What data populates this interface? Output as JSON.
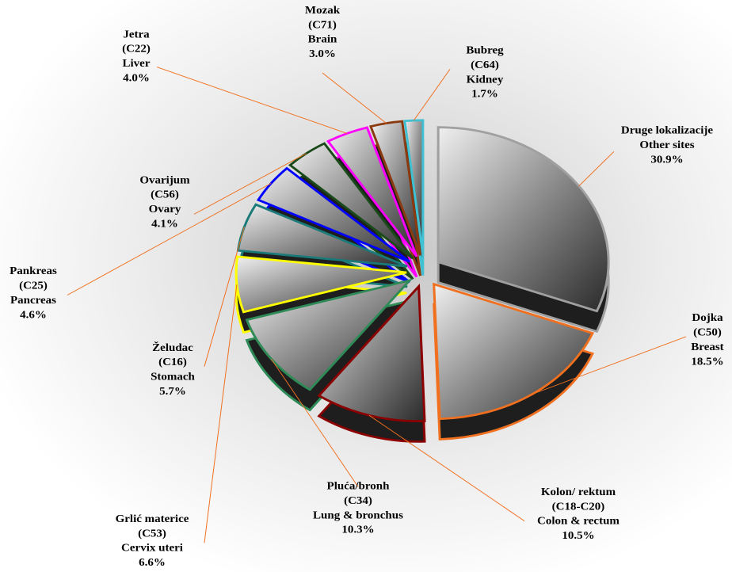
{
  "chart_data": {
    "type": "pie",
    "labels": [
      [
        "Druge lokalizacije",
        "Other sites"
      ],
      [
        "Dojka",
        "(C50)",
        "Breast"
      ],
      [
        "Kolon/ rektum",
        "(C18-C20)",
        "Colon & rectum"
      ],
      [
        "Pluća/bronh",
        "(C34)",
        "Lung & bronchus"
      ],
      [
        "Grlić materice",
        "(C53)",
        "Cervix uteri"
      ],
      [
        "Želudac",
        "(C16)",
        "Stomach"
      ],
      [
        "Pankreas",
        "(C25)",
        "Pancreas"
      ],
      [
        "Ovarijum",
        "(C56)",
        "Ovary"
      ],
      [
        "Jetra",
        "(C22)",
        "Liver"
      ],
      [
        "Mozak",
        "(C71)",
        "Brain"
      ],
      [
        "Bubreg",
        "(C64)",
        "Kidney"
      ]
    ],
    "values": [
      30.9,
      18.5,
      10.5,
      10.3,
      6.6,
      5.7,
      4.6,
      4.1,
      4.0,
      3.0,
      1.7
    ],
    "value_labels": [
      "30.9%",
      "18.5%",
      "10.5%",
      "10.3%",
      "6.6%",
      "5.7%",
      "4.6%",
      "4.1%",
      "4.0%",
      "3.0%",
      "1.7%"
    ],
    "colors": [
      "#a0a0a0",
      "#f07020",
      "#8b0000",
      "#2e8b57",
      "#ffff00",
      "#1a7a7a",
      "#0000ff",
      "#1a4a1a",
      "#ff00ff",
      "#8b3a0f",
      "#40c0d0"
    ]
  }
}
